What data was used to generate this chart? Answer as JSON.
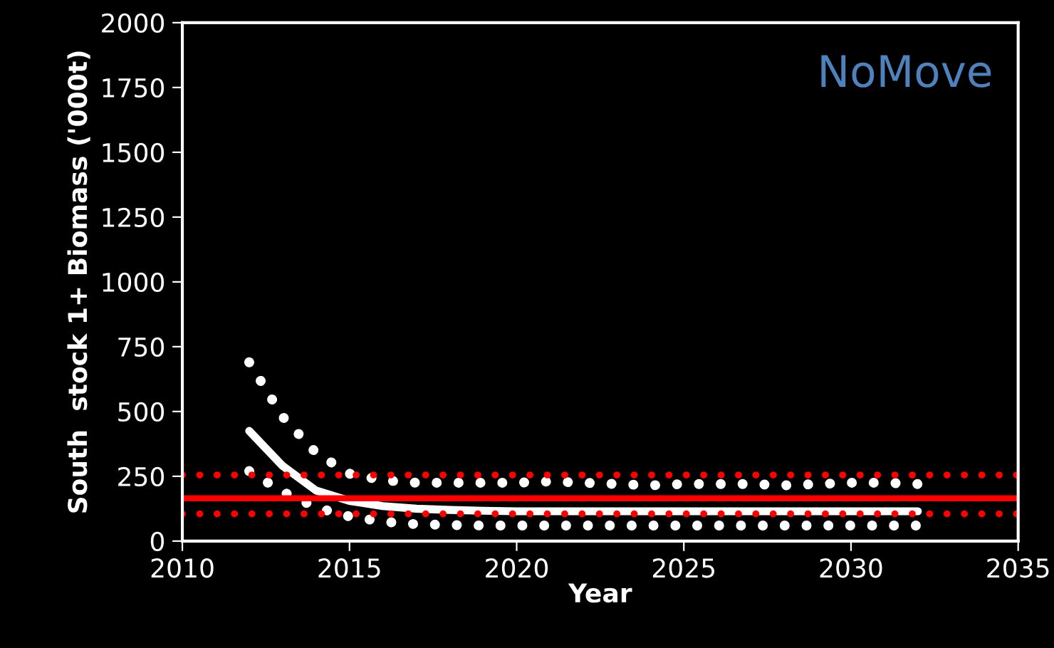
{
  "chart_data": {
    "type": "line",
    "xlabel": "Year",
    "ylabel": "South  stock 1+ Biomass ('000t)",
    "annotations": [
      "NoMove"
    ],
    "x": [
      2012,
      2013,
      2014,
      2015,
      2016,
      2017,
      2018,
      2019,
      2020,
      2021,
      2022,
      2023,
      2024,
      2025,
      2026,
      2027,
      2028,
      2029,
      2030,
      2031,
      2032
    ],
    "series": [
      {
        "color": "#ffffff",
        "line_style": "solid",
        "values": [
          425,
          290,
          195,
          155,
          135,
          125,
          120,
          117,
          115,
          115,
          115,
          115,
          115,
          115,
          115,
          115,
          115,
          115,
          115,
          115,
          115
        ]
      },
      {
        "color": "#ffffff",
        "line_style": "dotted",
        "values": [
          690,
          480,
          340,
          260,
          235,
          225,
          225,
          225,
          225,
          230,
          225,
          220,
          215,
          220,
          220,
          220,
          215,
          220,
          225,
          225,
          220
        ]
      },
      {
        "color": "#ffffff",
        "line_style": "dotted",
        "values": [
          270,
          190,
          130,
          95,
          75,
          65,
          62,
          60,
          60,
          60,
          60,
          60,
          60,
          60,
          60,
          60,
          60,
          60,
          60,
          60,
          60
        ]
      }
    ],
    "ref_lines": [
      {
        "axis": "y",
        "value": 165,
        "color": "#ff0000",
        "line_style": "solid"
      },
      {
        "axis": "y",
        "value": 255,
        "color": "#ff0000",
        "line_style": "dotted"
      },
      {
        "axis": "y",
        "value": 105,
        "color": "#ff0000",
        "line_style": "dotted"
      }
    ],
    "xlim": [
      2010,
      2035
    ],
    "xticks": [
      2010,
      2015,
      2020,
      2025,
      2030,
      2035
    ],
    "ylim": [
      0,
      2000
    ],
    "yticks": [
      0,
      250,
      500,
      750,
      1000,
      1250,
      1500,
      1750,
      2000
    ],
    "grid": false,
    "legend": false
  }
}
